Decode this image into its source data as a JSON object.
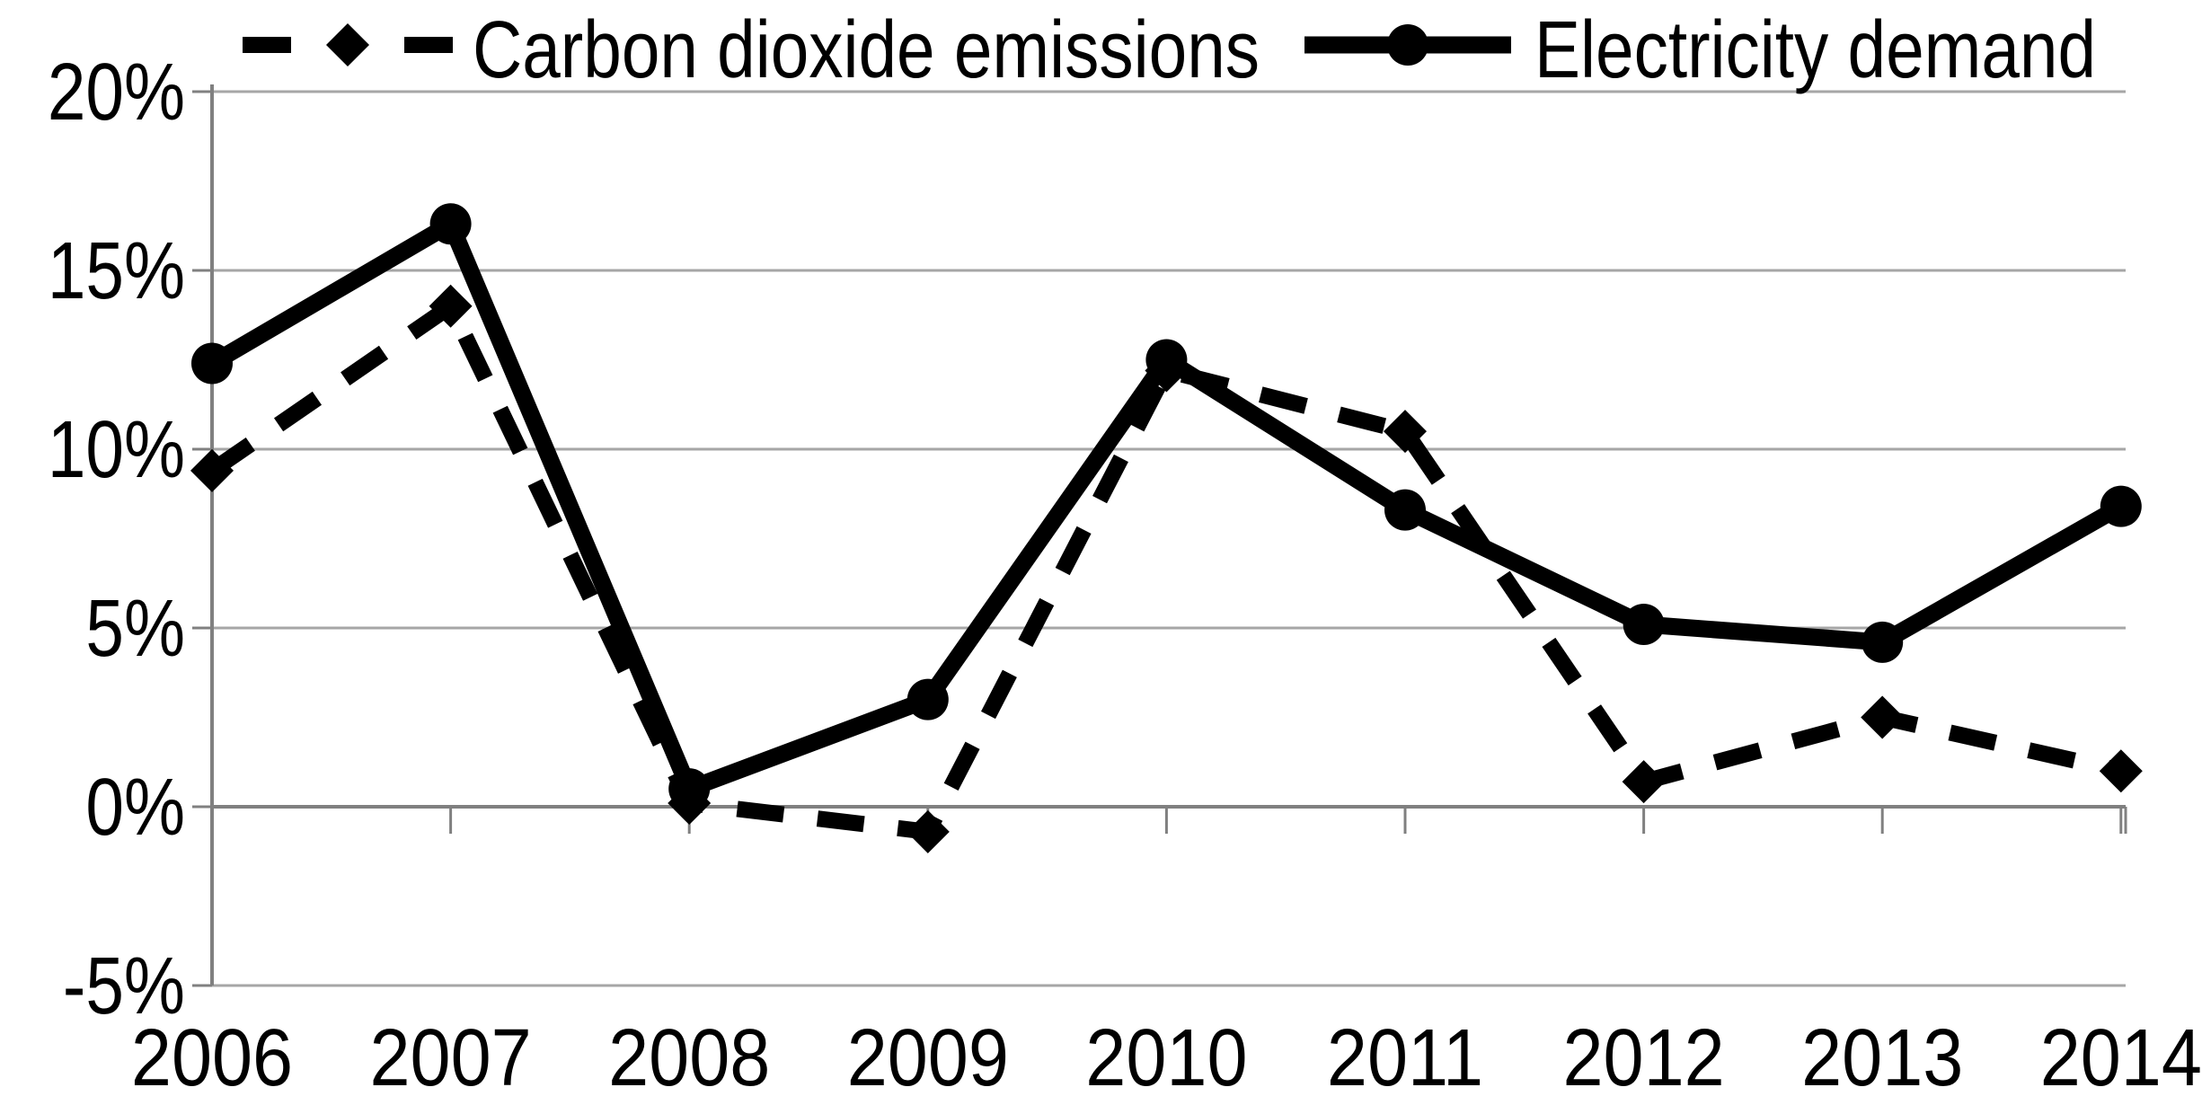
{
  "chart_data": {
    "type": "line",
    "title": "",
    "xlabel": "",
    "ylabel": "",
    "categories": [
      "2006",
      "2007",
      "2008",
      "2009",
      "2010",
      "2011",
      "2012",
      "2013",
      "2014"
    ],
    "series": [
      {
        "name": "Carbon dioxide emissions",
        "line_style": "dashed",
        "marker": "diamond",
        "color": "#000000",
        "values": [
          9.4,
          14.0,
          0.1,
          -0.7,
          12.2,
          10.5,
          0.7,
          2.5,
          1.0
        ]
      },
      {
        "name": "Electricity demand",
        "line_style": "solid",
        "marker": "circle",
        "color": "#000000",
        "values": [
          12.4,
          16.3,
          0.5,
          3.0,
          12.5,
          8.3,
          5.1,
          4.6,
          8.4
        ]
      }
    ],
    "y_ticks": [
      {
        "label": "20%",
        "value": 20
      },
      {
        "label": "15%",
        "value": 15
      },
      {
        "label": "10%",
        "value": 10
      },
      {
        "label": "5%",
        "value": 5
      },
      {
        "label": "0%",
        "value": 0
      },
      {
        "label": "-5%",
        "value": -5
      }
    ],
    "ylim": [
      -5,
      20
    ],
    "grid": true,
    "axis_cross_value": 0,
    "legend_position": "top",
    "colors": {
      "series": "#000000",
      "gridline": "#a6a6a6",
      "axis": "#808080",
      "background": "#ffffff"
    }
  }
}
